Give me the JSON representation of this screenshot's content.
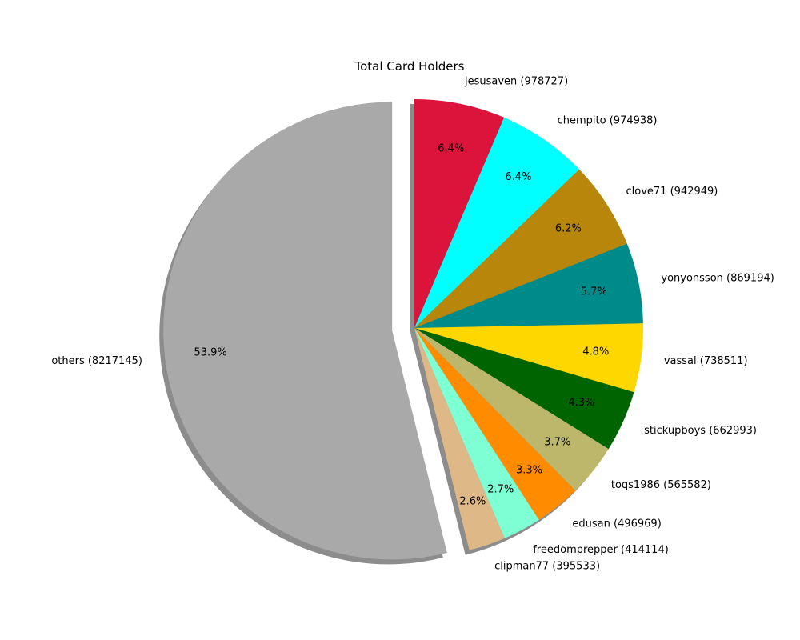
{
  "chart_data": {
    "type": "pie",
    "title": "Total Card Holders",
    "start_angle_deg": 90,
    "direction": "clockwise",
    "shadow": true,
    "exploded": [
      "others"
    ],
    "slices": [
      {
        "name": "jesusaven",
        "value": 978727,
        "label": "jesusaven (978727)",
        "pct_label": "6.4%",
        "color": "#dc143c"
      },
      {
        "name": "chempito",
        "value": 974938,
        "label": "chempito (974938)",
        "pct_label": "6.4%",
        "color": "#00ffff"
      },
      {
        "name": "clove71",
        "value": 942949,
        "label": "clove71 (942949)",
        "pct_label": "6.2%",
        "color": "#b8860b"
      },
      {
        "name": "yonyonsson",
        "value": 869194,
        "label": "yonyonsson (869194)",
        "pct_label": "5.7%",
        "color": "#008b8b"
      },
      {
        "name": "vassal",
        "value": 738511,
        "label": "vassal (738511)",
        "pct_label": "4.8%",
        "color": "#ffd700"
      },
      {
        "name": "stickupboys",
        "value": 662993,
        "label": "stickupboys (662993)",
        "pct_label": "4.3%",
        "color": "#006400"
      },
      {
        "name": "toqs1986",
        "value": 565582,
        "label": "toqs1986 (565582)",
        "pct_label": "3.7%",
        "color": "#bdb76b"
      },
      {
        "name": "edusan",
        "value": 496969,
        "label": "edusan (496969)",
        "pct_label": "3.3%",
        "color": "#ff8c00"
      },
      {
        "name": "freedomprepper",
        "value": 414114,
        "label": "freedomprepper (414114)",
        "pct_label": "2.7%",
        "color": "#7fffd4"
      },
      {
        "name": "clipman77",
        "value": 395533,
        "label": "clipman77 (395533)",
        "pct_label": "2.6%",
        "color": "#deb887"
      },
      {
        "name": "others",
        "value": 8217145,
        "label": "others (8217145)",
        "pct_label": "53.9%",
        "color": "#a9a9a9"
      }
    ]
  }
}
